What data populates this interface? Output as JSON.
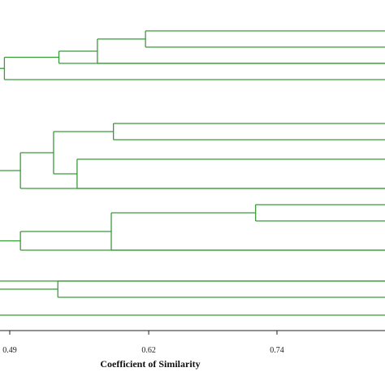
{
  "chart_data": {
    "type": "dendrogram",
    "xlabel": "Coefficient of Similarity",
    "x_ticks": [
      0.49,
      0.62,
      0.74
    ],
    "x_tick_labels": [
      "0.49",
      "0.62",
      "0.74"
    ],
    "x_range": [
      0.48,
      0.84
    ],
    "orientation": "root-left",
    "line_color": "#3a9b3a",
    "axis_color": "#222222",
    "leaves": 17,
    "merges": [
      {
        "id": "A1",
        "left": "L0",
        "right": "L1",
        "similarity": 0.617
      },
      {
        "id": "A2",
        "left": "A1",
        "right": "L2",
        "similarity": 0.572
      },
      {
        "id": "A3",
        "left": "A2",
        "right": "L3",
        "similarity": 0.536
      },
      {
        "id": "A4",
        "left": "A3",
        "right": "L4",
        "similarity": 0.485
      },
      {
        "id": "B1",
        "left": "L5",
        "right": "L6",
        "similarity": 0.587
      },
      {
        "id": "B2",
        "left": "L7",
        "right": "L8",
        "similarity": 0.553
      },
      {
        "id": "B3",
        "left": "B1",
        "right": "B2",
        "similarity": 0.531
      },
      {
        "id": "B4",
        "left": "B3",
        "right": "L9",
        "similarity": 0.5
      },
      {
        "id": "C1",
        "left": "L10",
        "right": "L11",
        "similarity": 0.72
      },
      {
        "id": "C2",
        "left": "C1",
        "right": "L12",
        "similarity": 0.585
      },
      {
        "id": "C3",
        "left": "C2",
        "right": "L13",
        "similarity": 0.5
      },
      {
        "id": "D1",
        "left": "L14",
        "right": "L15",
        "similarity": 0.535
      }
    ]
  }
}
